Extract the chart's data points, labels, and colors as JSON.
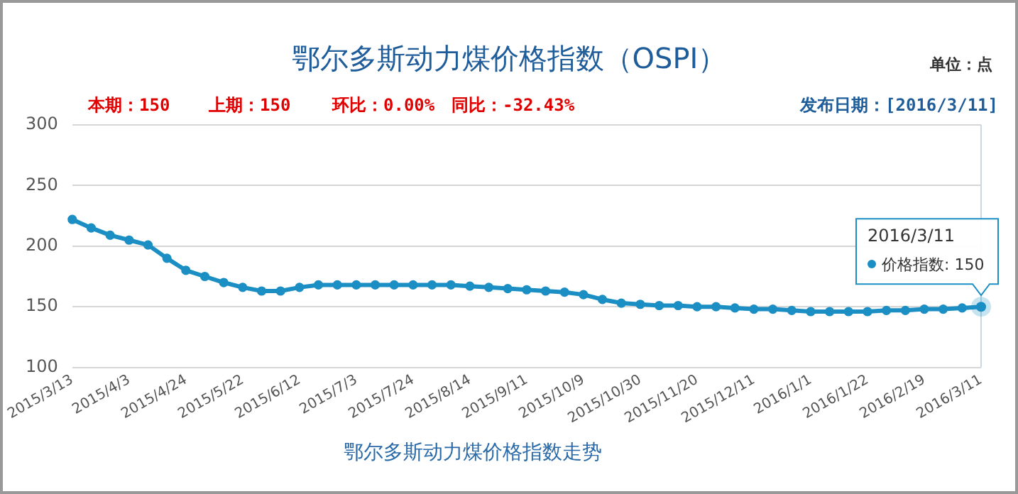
{
  "chart_data": {
    "type": "line",
    "title": "鄂尔多斯动力煤价格指数（OSPI）",
    "xlabel": "鄂尔多斯动力煤价格指数走势",
    "categories": [
      "2015/3/13",
      null,
      null,
      "2015/4/3",
      null,
      null,
      "2015/4/24",
      null,
      null,
      "2015/5/22",
      null,
      null,
      "2015/6/12",
      null,
      null,
      "2015/7/3",
      null,
      null,
      "2015/7/24",
      null,
      null,
      "2015/8/14",
      null,
      null,
      "2015/9/11",
      null,
      null,
      "2015/10/9",
      null,
      null,
      "2015/10/30",
      null,
      null,
      "2015/11/20",
      null,
      null,
      "2015/12/11",
      null,
      null,
      "2016/1/1",
      null,
      null,
      "2016/1/22",
      null,
      null,
      "2016/2/19",
      null,
      null,
      "2016/3/11"
    ],
    "series": [
      {
        "color": "#1b8fc4",
        "values": [
          222,
          215,
          209,
          205,
          201,
          190,
          180,
          175,
          170,
          166,
          163,
          163,
          166,
          168,
          168,
          168,
          168,
          168,
          168,
          168,
          168,
          167,
          166,
          165,
          164,
          163,
          162,
          160,
          156,
          153,
          152,
          151,
          151,
          150,
          150,
          149,
          148,
          148,
          147,
          146,
          146,
          146,
          146,
          147,
          147,
          148,
          148,
          149,
          150
        ]
      }
    ],
    "ylim": [
      100,
      300
    ],
    "yticks": [
      100,
      150,
      200,
      250,
      300
    ],
    "grid": "y",
    "legend": false,
    "marker": "circle",
    "line_style": "solid",
    "annotations": [
      "单位：点",
      "本期：150",
      "上期：150",
      "环比：0.00%",
      "同比：-32.43%",
      "发布日期：[2016/3/11]",
      "2016/3/11",
      {
        "text": "价格指数: 150",
        "x": "2016/3/11",
        "y": 150
      }
    ]
  }
}
